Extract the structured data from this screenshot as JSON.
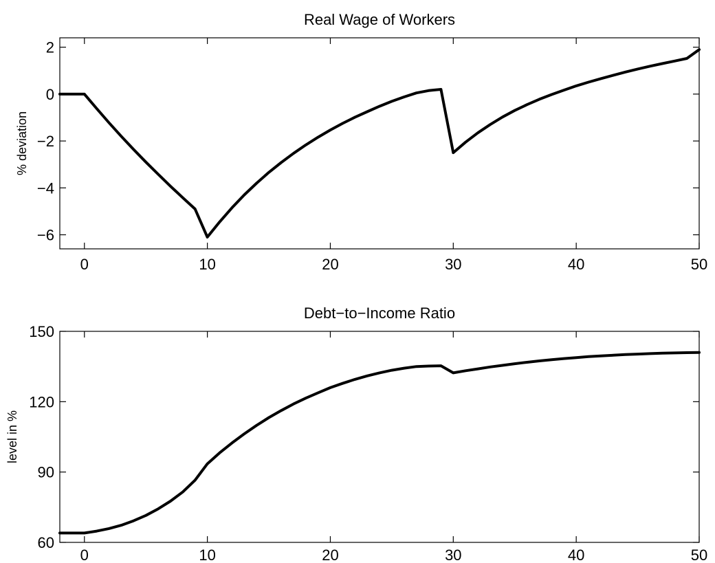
{
  "chart_data": [
    {
      "type": "line",
      "title": "Real Wage of Workers",
      "xlabel": "",
      "ylabel": "% deviation",
      "xlim": [
        -2,
        50
      ],
      "ylim": [
        -6.6,
        2.4
      ],
      "xticks": [
        0,
        10,
        20,
        30,
        40,
        50
      ],
      "yticks": [
        2,
        0,
        -2,
        -4,
        -6
      ],
      "grid": false,
      "series": [
        {
          "values": [
            [
              -2,
              0
            ],
            [
              0,
              0
            ],
            [
              1,
              -0.62
            ],
            [
              2,
              -1.22
            ],
            [
              3,
              -1.8
            ],
            [
              4,
              -2.36
            ],
            [
              5,
              -2.9
            ],
            [
              6,
              -3.42
            ],
            [
              7,
              -3.93
            ],
            [
              8,
              -4.42
            ],
            [
              9,
              -4.9
            ],
            [
              10,
              -6.1
            ],
            [
              11,
              -5.45
            ],
            [
              12,
              -4.85
            ],
            [
              13,
              -4.3
            ],
            [
              14,
              -3.8
            ],
            [
              15,
              -3.34
            ],
            [
              16,
              -2.92
            ],
            [
              17,
              -2.53
            ],
            [
              18,
              -2.17
            ],
            [
              19,
              -1.84
            ],
            [
              20,
              -1.53
            ],
            [
              21,
              -1.25
            ],
            [
              22,
              -0.99
            ],
            [
              23,
              -0.75
            ],
            [
              24,
              -0.52
            ],
            [
              25,
              -0.31
            ],
            [
              26,
              -0.12
            ],
            [
              27,
              0.05
            ],
            [
              28,
              0.15
            ],
            [
              29,
              0.2
            ],
            [
              30,
              -2.5
            ],
            [
              31,
              -2.05
            ],
            [
              32,
              -1.65
            ],
            [
              33,
              -1.3
            ],
            [
              34,
              -0.98
            ],
            [
              35,
              -0.7
            ],
            [
              36,
              -0.45
            ],
            [
              37,
              -0.22
            ],
            [
              38,
              -0.02
            ],
            [
              39,
              0.17
            ],
            [
              40,
              0.35
            ],
            [
              41,
              0.51
            ],
            [
              42,
              0.66
            ],
            [
              43,
              0.8
            ],
            [
              44,
              0.94
            ],
            [
              45,
              1.07
            ],
            [
              46,
              1.19
            ],
            [
              47,
              1.3
            ],
            [
              48,
              1.41
            ],
            [
              49,
              1.52
            ],
            [
              50,
              1.9
            ]
          ]
        }
      ]
    },
    {
      "type": "line",
      "title": "Debt−to−Income Ratio",
      "xlabel": "",
      "ylabel": "level in %",
      "xlim": [
        -2,
        50
      ],
      "ylim": [
        60,
        150
      ],
      "xticks": [
        0,
        10,
        20,
        30,
        40,
        50
      ],
      "yticks": [
        150,
        120,
        90,
        60
      ],
      "grid": false,
      "series": [
        {
          "values": [
            [
              -2,
              64
            ],
            [
              0,
              64
            ],
            [
              1,
              64.8
            ],
            [
              2,
              65.9
            ],
            [
              3,
              67.3
            ],
            [
              4,
              69.2
            ],
            [
              5,
              71.5
            ],
            [
              6,
              74.3
            ],
            [
              7,
              77.6
            ],
            [
              8,
              81.5
            ],
            [
              9,
              86.5
            ],
            [
              10,
              93.5
            ],
            [
              11,
              98.2
            ],
            [
              12,
              102.4
            ],
            [
              13,
              106.3
            ],
            [
              14,
              109.9
            ],
            [
              15,
              113.2
            ],
            [
              16,
              116.2
            ],
            [
              17,
              119
            ],
            [
              18,
              121.5
            ],
            [
              19,
              123.8
            ],
            [
              20,
              126
            ],
            [
              21,
              127.8
            ],
            [
              22,
              129.5
            ],
            [
              23,
              131
            ],
            [
              24,
              132.3
            ],
            [
              25,
              133.4
            ],
            [
              26,
              134.3
            ],
            [
              27,
              135
            ],
            [
              28,
              135.2
            ],
            [
              29,
              135.3
            ],
            [
              30,
              132.3
            ],
            [
              31,
              133.2
            ],
            [
              32,
              134
            ],
            [
              33,
              134.8
            ],
            [
              34,
              135.5
            ],
            [
              35,
              136.2
            ],
            [
              36,
              136.8
            ],
            [
              37,
              137.4
            ],
            [
              38,
              137.9
            ],
            [
              39,
              138.4
            ],
            [
              40,
              138.8
            ],
            [
              41,
              139.2
            ],
            [
              42,
              139.5
            ],
            [
              43,
              139.8
            ],
            [
              44,
              140.1
            ],
            [
              45,
              140.3
            ],
            [
              46,
              140.5
            ],
            [
              47,
              140.7
            ],
            [
              48,
              140.8
            ],
            [
              49,
              140.9
            ],
            [
              50,
              141
            ]
          ]
        }
      ]
    }
  ]
}
